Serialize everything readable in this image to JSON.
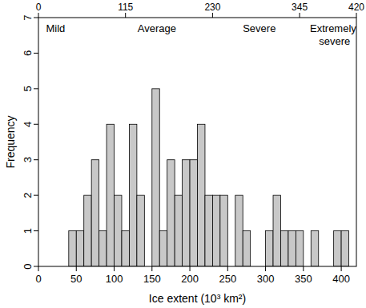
{
  "chart_data": {
    "type": "histogram",
    "x_label": "Ice extent (10³ km²)",
    "y_label": "Frequency",
    "bins": [
      40,
      50,
      60,
      70,
      80,
      90,
      100,
      110,
      120,
      130,
      140,
      150,
      160,
      170,
      180,
      190,
      200,
      210,
      220,
      230,
      240,
      250,
      260,
      270,
      280,
      290,
      300,
      310,
      320,
      330,
      340,
      350,
      360,
      370,
      380,
      390,
      400,
      410
    ],
    "values": [
      1,
      1,
      2,
      3,
      1,
      4,
      2,
      1,
      4,
      2,
      0,
      5,
      1,
      3,
      2,
      3,
      3,
      4,
      2,
      2,
      2,
      0,
      2,
      1,
      0,
      0,
      1,
      2,
      1,
      1,
      1,
      0,
      1,
      0,
      0,
      1,
      1
    ],
    "color": "#c8c8c8",
    "xlim": [
      0,
      420
    ],
    "xticks": [
      0,
      50,
      100,
      150,
      200,
      250,
      300,
      350,
      400
    ],
    "x2ticks": [
      0,
      115,
      230,
      345,
      420
    ],
    "ylim": [
      0,
      7
    ],
    "yticks": [
      0,
      1,
      2,
      3,
      4,
      5,
      6,
      7
    ],
    "annotations": [
      {
        "text": "Mild",
        "x": 10,
        "y": 6.6
      },
      {
        "text": "Average",
        "x": 131,
        "y": 6.6
      },
      {
        "text": "Severe",
        "x": 270,
        "y": 6.6
      },
      {
        "text": "Extremely severe",
        "x": 370,
        "y": 6.6
      }
    ]
  }
}
